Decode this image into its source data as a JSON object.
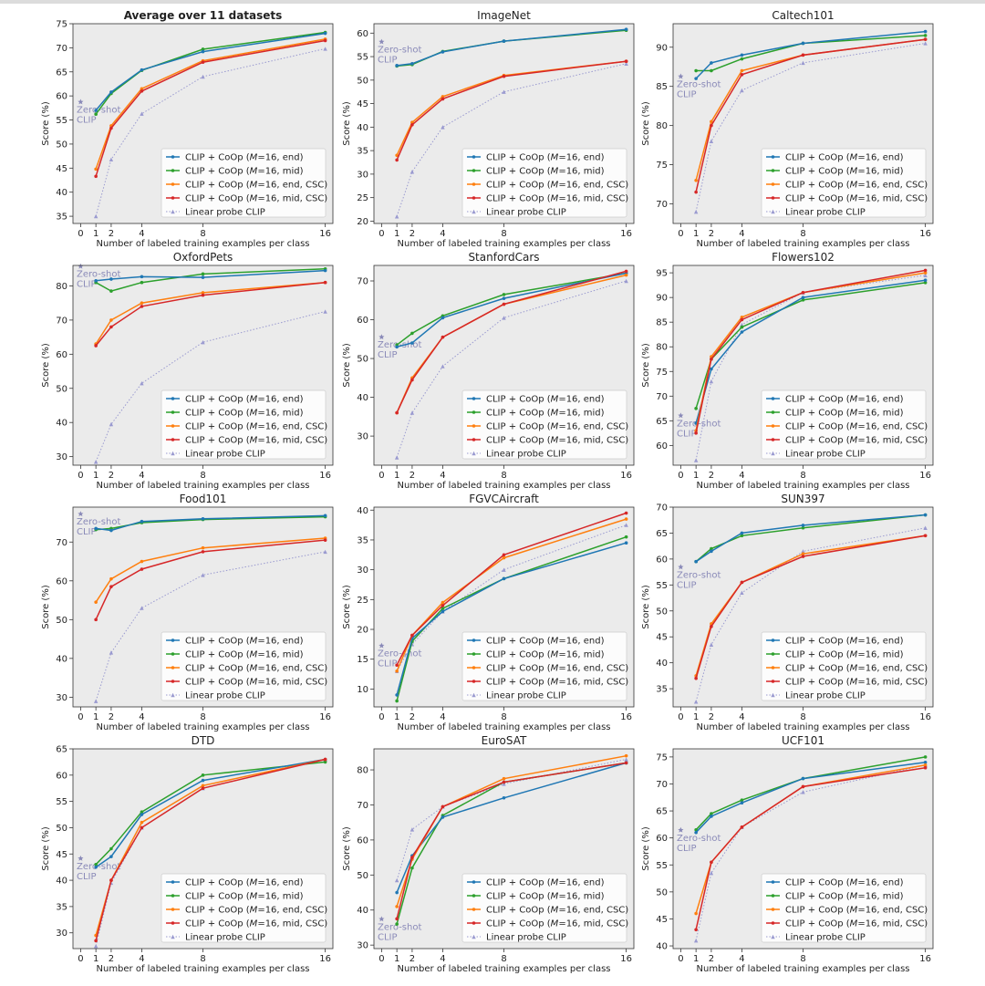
{
  "figure": {
    "legend_labels": [
      "CLIP + CoOp (M=16, end)",
      "CLIP + CoOp (M=16, mid)",
      "CLIP + CoOp (M=16, end, CSC)",
      "CLIP + CoOp (M=16, mid, CSC)",
      "Linear probe CLIP"
    ],
    "xlabel": "Number of labeled training examples per class",
    "ylabel": "Score (%)",
    "zeroshot_label": [
      "Zero-shot",
      "CLIP"
    ],
    "x_ticks": [
      0,
      1,
      2,
      4,
      8,
      16
    ],
    "series_colors": [
      "#1f77b4",
      "#2ca02c",
      "#ff7f0e",
      "#d62728",
      "#9a9ad0"
    ],
    "zeroshot_color": "#8a8ab8"
  },
  "chart_data": [
    {
      "type": "line",
      "title": "Average over 11 datasets",
      "title_bold": true,
      "xlabel": "Number of labeled training examples per class",
      "ylabel": "Score (%)",
      "x": [
        1,
        2,
        4,
        8,
        16
      ],
      "xlim": [
        -0.5,
        16.5
      ],
      "ylim": [
        33.5,
        75
      ],
      "yticks": [
        35,
        40,
        45,
        50,
        55,
        60,
        65,
        70,
        75
      ],
      "zeroshot": 58.8,
      "series": [
        {
          "name": "CLIP + CoOp (M=16, end)",
          "values": [
            57.0,
            60.8,
            65.4,
            69.2,
            73.0
          ]
        },
        {
          "name": "CLIP + CoOp (M=16, mid)",
          "values": [
            56.2,
            60.5,
            65.3,
            69.7,
            73.2
          ]
        },
        {
          "name": "CLIP + CoOp (M=16, end, CSC)",
          "values": [
            44.8,
            53.8,
            61.5,
            67.3,
            71.8
          ]
        },
        {
          "name": "CLIP + CoOp (M=16, mid, CSC)",
          "values": [
            43.3,
            53.3,
            61.0,
            67.0,
            71.5
          ]
        },
        {
          "name": "Linear probe CLIP",
          "values": [
            35.0,
            46.8,
            56.3,
            64.0,
            69.8
          ]
        }
      ]
    },
    {
      "type": "line",
      "title": "ImageNet",
      "title_bold": false,
      "xlabel": "Number of labeled training examples per class",
      "ylabel": "Score (%)",
      "x": [
        1,
        2,
        4,
        8,
        16
      ],
      "xlim": [
        -0.5,
        16.5
      ],
      "ylim": [
        19.5,
        62
      ],
      "yticks": [
        20,
        25,
        30,
        35,
        40,
        45,
        50,
        55,
        60
      ],
      "zeroshot": 58.2,
      "series": [
        {
          "name": "CLIP + CoOp (M=16, end)",
          "values": [
            53.1,
            53.5,
            56.0,
            58.3,
            60.8
          ]
        },
        {
          "name": "CLIP + CoOp (M=16, mid)",
          "values": [
            53.0,
            53.3,
            56.1,
            58.3,
            60.6
          ]
        },
        {
          "name": "CLIP + CoOp (M=16, end, CSC)",
          "values": [
            34.0,
            41.0,
            46.5,
            51.0,
            54.0
          ]
        },
        {
          "name": "CLIP + CoOp (M=16, mid, CSC)",
          "values": [
            33.0,
            40.5,
            46.0,
            50.8,
            54.0
          ]
        },
        {
          "name": "Linear probe CLIP",
          "values": [
            21.0,
            30.5,
            40.0,
            47.5,
            53.5
          ]
        }
      ]
    },
    {
      "type": "line",
      "title": "Caltech101",
      "title_bold": false,
      "xlabel": "Number of labeled training examples per class",
      "ylabel": "Score (%)",
      "x": [
        1,
        2,
        4,
        8,
        16
      ],
      "xlim": [
        -0.5,
        16.5
      ],
      "ylim": [
        67.5,
        93
      ],
      "yticks": [
        70,
        75,
        80,
        85,
        90
      ],
      "zeroshot": 86.3,
      "series": [
        {
          "name": "CLIP + CoOp (M=16, end)",
          "values": [
            86.0,
            88.0,
            89.0,
            90.5,
            92.0
          ]
        },
        {
          "name": "CLIP + CoOp (M=16, mid)",
          "values": [
            87.0,
            87.0,
            88.5,
            90.5,
            91.5
          ]
        },
        {
          "name": "CLIP + CoOp (M=16, end, CSC)",
          "values": [
            73.0,
            80.5,
            87.0,
            89.0,
            91.0
          ]
        },
        {
          "name": "CLIP + CoOp (M=16, mid, CSC)",
          "values": [
            71.5,
            80.0,
            86.5,
            89.0,
            91.0
          ]
        },
        {
          "name": "Linear probe CLIP",
          "values": [
            69.0,
            78.0,
            84.5,
            88.0,
            90.5
          ]
        }
      ]
    },
    {
      "type": "line",
      "title": "OxfordPets",
      "title_bold": false,
      "xlabel": "Number of labeled training examples per class",
      "ylabel": "Score (%)",
      "x": [
        1,
        2,
        4,
        8,
        16
      ],
      "xlim": [
        -0.5,
        16.5
      ],
      "ylim": [
        27.5,
        86
      ],
      "yticks": [
        30,
        40,
        50,
        60,
        70,
        80
      ],
      "zeroshot": 85.8,
      "series": [
        {
          "name": "CLIP + CoOp (M=16, end)",
          "values": [
            81.5,
            82.0,
            82.7,
            82.5,
            84.5
          ]
        },
        {
          "name": "CLIP + CoOp (M=16, mid)",
          "values": [
            81.0,
            78.5,
            81.0,
            83.5,
            85.0
          ]
        },
        {
          "name": "CLIP + CoOp (M=16, end, CSC)",
          "values": [
            63.0,
            70.0,
            75.0,
            78.0,
            81.0
          ]
        },
        {
          "name": "CLIP + CoOp (M=16, mid, CSC)",
          "values": [
            62.5,
            68.0,
            74.0,
            77.3,
            81.0
          ]
        },
        {
          "name": "Linear probe CLIP",
          "values": [
            28.5,
            39.5,
            51.5,
            63.5,
            72.5
          ]
        }
      ]
    },
    {
      "type": "line",
      "title": "StanfordCars",
      "title_bold": false,
      "xlabel": "Number of labeled training examples per class",
      "ylabel": "Score (%)",
      "x": [
        1,
        2,
        4,
        8,
        16
      ],
      "xlim": [
        -0.5,
        16.5
      ],
      "ylim": [
        22.5,
        74
      ],
      "yticks": [
        30,
        40,
        50,
        60,
        70
      ],
      "zeroshot": 55.6,
      "series": [
        {
          "name": "CLIP + CoOp (M=16, end)",
          "values": [
            53.0,
            54.0,
            60.5,
            65.5,
            72.0
          ]
        },
        {
          "name": "CLIP + CoOp (M=16, mid)",
          "values": [
            53.5,
            56.5,
            61.0,
            66.5,
            72.0
          ]
        },
        {
          "name": "CLIP + CoOp (M=16, end, CSC)",
          "values": [
            36.0,
            45.0,
            55.5,
            64.0,
            71.5
          ]
        },
        {
          "name": "CLIP + CoOp (M=16, mid, CSC)",
          "values": [
            36.0,
            44.5,
            55.5,
            64.0,
            72.5
          ]
        },
        {
          "name": "Linear probe CLIP",
          "values": [
            24.5,
            36.0,
            48.0,
            60.5,
            70.0
          ]
        }
      ]
    },
    {
      "type": "line",
      "title": "Flowers102",
      "title_bold": false,
      "xlabel": "Number of labeled training examples per class",
      "ylabel": "Score (%)",
      "x": [
        1,
        2,
        4,
        8,
        16
      ],
      "xlim": [
        -0.5,
        16.5
      ],
      "ylim": [
        56,
        96.5
      ],
      "yticks": [
        60,
        65,
        70,
        75,
        80,
        85,
        90,
        95
      ],
      "zeroshot": 66.1,
      "series": [
        {
          "name": "CLIP + CoOp (M=16, end)",
          "values": [
            64.5,
            75.5,
            83.0,
            90.0,
            93.5
          ]
        },
        {
          "name": "CLIP + CoOp (M=16, mid)",
          "values": [
            67.5,
            77.5,
            84.0,
            89.5,
            93.0
          ]
        },
        {
          "name": "CLIP + CoOp (M=16, end, CSC)",
          "values": [
            63.0,
            78.0,
            86.0,
            91.0,
            95.0
          ]
        },
        {
          "name": "CLIP + CoOp (M=16, mid, CSC)",
          "values": [
            62.5,
            77.5,
            85.5,
            91.0,
            95.5
          ]
        },
        {
          "name": "Linear probe CLIP",
          "values": [
            57.0,
            73.0,
            84.5,
            91.0,
            94.5
          ]
        }
      ]
    },
    {
      "type": "line",
      "title": "Food101",
      "title_bold": false,
      "xlabel": "Number of labeled training examples per class",
      "ylabel": "Score (%)",
      "x": [
        1,
        2,
        4,
        8,
        16
      ],
      "xlim": [
        -0.5,
        16.5
      ],
      "ylim": [
        27.5,
        79
      ],
      "yticks": [
        30,
        40,
        50,
        60,
        70
      ],
      "zeroshot": 77.3,
      "series": [
        {
          "name": "CLIP + CoOp (M=16, end)",
          "values": [
            73.5,
            73.0,
            75.3,
            76.0,
            76.8
          ]
        },
        {
          "name": "CLIP + CoOp (M=16, mid)",
          "values": [
            73.2,
            73.5,
            75.0,
            75.8,
            76.5
          ]
        },
        {
          "name": "CLIP + CoOp (M=16, end, CSC)",
          "values": [
            54.5,
            60.5,
            65.0,
            68.5,
            71.0
          ]
        },
        {
          "name": "CLIP + CoOp (M=16, mid, CSC)",
          "values": [
            50.0,
            58.5,
            63.0,
            67.5,
            70.5
          ]
        },
        {
          "name": "Linear probe CLIP",
          "values": [
            29.0,
            41.5,
            53.0,
            61.5,
            67.5
          ]
        }
      ]
    },
    {
      "type": "line",
      "title": "FGVCAircraft",
      "title_bold": false,
      "xlabel": "Number of labeled training examples per class",
      "ylabel": "Score (%)",
      "x": [
        1,
        2,
        4,
        8,
        16
      ],
      "xlim": [
        -0.5,
        16.5
      ],
      "ylim": [
        7,
        40.5
      ],
      "yticks": [
        10,
        15,
        20,
        25,
        30,
        35,
        40
      ],
      "zeroshot": 17.3,
      "series": [
        {
          "name": "CLIP + CoOp (M=16, end)",
          "values": [
            9.0,
            18.5,
            23.0,
            28.5,
            34.5
          ]
        },
        {
          "name": "CLIP + CoOp (M=16, mid)",
          "values": [
            8.0,
            18.0,
            23.5,
            28.5,
            35.5
          ]
        },
        {
          "name": "CLIP + CoOp (M=16, end, CSC)",
          "values": [
            13.0,
            19.0,
            24.5,
            32.0,
            38.5
          ]
        },
        {
          "name": "CLIP + CoOp (M=16, mid, CSC)",
          "values": [
            14.0,
            19.0,
            24.0,
            32.5,
            39.5
          ]
        },
        {
          "name": "Linear probe CLIP",
          "values": [
            13.0,
            17.5,
            23.0,
            30.0,
            37.5
          ]
        }
      ]
    },
    {
      "type": "line",
      "title": "SUN397",
      "title_bold": false,
      "xlabel": "Number of labeled training examples per class",
      "ylabel": "Score (%)",
      "x": [
        1,
        2,
        4,
        8,
        16
      ],
      "xlim": [
        -0.5,
        16.5
      ],
      "ylim": [
        31.5,
        70
      ],
      "yticks": [
        35,
        40,
        45,
        50,
        55,
        60,
        65,
        70
      ],
      "zeroshot": 58.5,
      "series": [
        {
          "name": "CLIP + CoOp (M=16, end)",
          "values": [
            59.5,
            61.5,
            65.0,
            66.5,
            68.5
          ]
        },
        {
          "name": "CLIP + CoOp (M=16, mid)",
          "values": [
            59.5,
            62.0,
            64.5,
            66.0,
            68.5
          ]
        },
        {
          "name": "CLIP + CoOp (M=16, end, CSC)",
          "values": [
            37.5,
            47.5,
            55.5,
            61.0,
            64.5
          ]
        },
        {
          "name": "CLIP + CoOp (M=16, mid, CSC)",
          "values": [
            37.0,
            47.0,
            55.5,
            60.5,
            64.5
          ]
        },
        {
          "name": "Linear probe CLIP",
          "values": [
            32.5,
            43.5,
            53.5,
            61.5,
            66.0
          ]
        }
      ]
    },
    {
      "type": "line",
      "title": "DTD",
      "title_bold": false,
      "xlabel": "Number of labeled training examples per class",
      "ylabel": "Score (%)",
      "x": [
        1,
        2,
        4,
        8,
        16
      ],
      "xlim": [
        -0.5,
        16.5
      ],
      "ylim": [
        27,
        65
      ],
      "yticks": [
        30,
        35,
        40,
        45,
        50,
        55,
        60,
        65
      ],
      "zeroshot": 44.2,
      "series": [
        {
          "name": "CLIP + CoOp (M=16, end)",
          "values": [
            42.5,
            44.5,
            52.5,
            59.0,
            63.0
          ]
        },
        {
          "name": "CLIP + CoOp (M=16, mid)",
          "values": [
            43.0,
            46.0,
            53.0,
            60.0,
            62.5
          ]
        },
        {
          "name": "CLIP + CoOp (M=16, end, CSC)",
          "values": [
            29.5,
            40.0,
            51.0,
            58.0,
            63.0
          ]
        },
        {
          "name": "CLIP + CoOp (M=16, mid, CSC)",
          "values": [
            28.5,
            40.0,
            50.0,
            57.5,
            63.0
          ]
        },
        {
          "name": "Linear probe CLIP",
          "values": [
            27.5,
            39.5,
            50.0,
            57.5,
            63.0
          ]
        }
      ]
    },
    {
      "type": "line",
      "title": "EuroSAT",
      "title_bold": false,
      "xlabel": "Number of labeled training examples per class",
      "ylabel": "Score (%)",
      "x": [
        1,
        2,
        4,
        8,
        16
      ],
      "xlim": [
        -0.5,
        16.5
      ],
      "ylim": [
        29,
        86
      ],
      "yticks": [
        30,
        40,
        50,
        60,
        70,
        80
      ],
      "zeroshot": 37.5,
      "series": [
        {
          "name": "CLIP + CoOp (M=16, end)",
          "values": [
            45.0,
            55.5,
            66.5,
            72.0,
            82.0
          ]
        },
        {
          "name": "CLIP + CoOp (M=16, mid)",
          "values": [
            36.0,
            52.0,
            67.0,
            76.5,
            82.0
          ]
        },
        {
          "name": "CLIP + CoOp (M=16, end, CSC)",
          "values": [
            41.0,
            54.5,
            69.5,
            77.5,
            84.0
          ]
        },
        {
          "name": "CLIP + CoOp (M=16, mid, CSC)",
          "values": [
            37.5,
            55.0,
            69.5,
            76.5,
            82.0
          ]
        },
        {
          "name": "Linear probe CLIP",
          "values": [
            48.5,
            63.0,
            69.5,
            76.0,
            83.0
          ]
        }
      ]
    },
    {
      "type": "line",
      "title": "UCF101",
      "title_bold": false,
      "xlabel": "Number of labeled training examples per class",
      "ylabel": "Score (%)",
      "x": [
        1,
        2,
        4,
        8,
        16
      ],
      "xlim": [
        -0.5,
        16.5
      ],
      "ylim": [
        39.5,
        76.5
      ],
      "yticks": [
        40,
        45,
        50,
        55,
        60,
        65,
        70,
        75
      ],
      "zeroshot": 61.5,
      "series": [
        {
          "name": "CLIP + CoOp (M=16, end)",
          "values": [
            61.0,
            64.0,
            66.5,
            71.0,
            74.0
          ]
        },
        {
          "name": "CLIP + CoOp (M=16, mid)",
          "values": [
            61.5,
            64.5,
            67.0,
            71.0,
            75.0
          ]
        },
        {
          "name": "CLIP + CoOp (M=16, end, CSC)",
          "values": [
            46.0,
            55.5,
            62.0,
            69.5,
            73.5
          ]
        },
        {
          "name": "CLIP + CoOp (M=16, mid, CSC)",
          "values": [
            43.0,
            55.5,
            62.0,
            69.5,
            73.0
          ]
        },
        {
          "name": "Linear probe CLIP",
          "values": [
            41.0,
            53.5,
            62.0,
            68.5,
            73.5
          ]
        }
      ]
    }
  ]
}
